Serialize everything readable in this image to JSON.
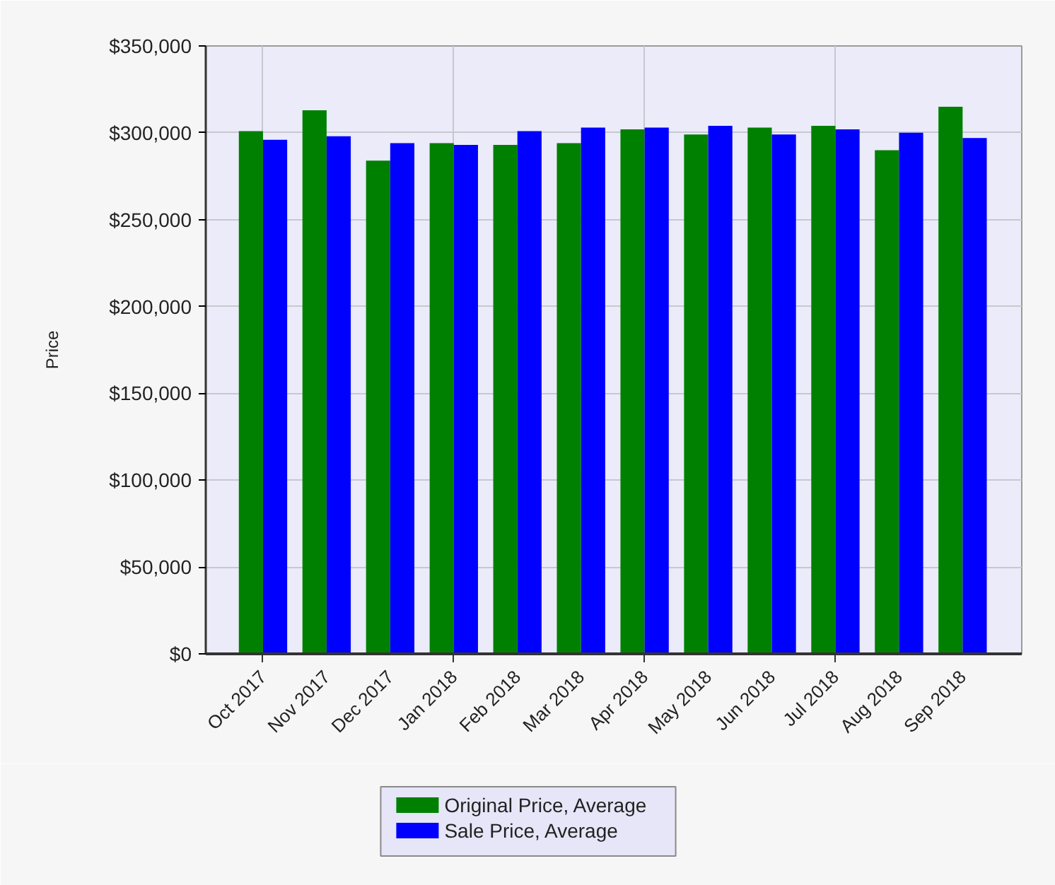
{
  "chart_data": {
    "type": "bar",
    "ylabel": "Price",
    "categories": [
      "Oct 2017",
      "Nov 2017",
      "Dec 2017",
      "Jan 2018",
      "Feb 2018",
      "Mar 2018",
      "Apr 2018",
      "May 2018",
      "Jun 2018",
      "Jul 2018",
      "Aug 2018",
      "Sep 2018"
    ],
    "series": [
      {
        "name": "Original Price, Average",
        "color": "#008000",
        "values": [
          301000,
          313000,
          284000,
          294000,
          293000,
          294000,
          302000,
          299000,
          303000,
          304000,
          290000,
          315000
        ]
      },
      {
        "name": "Sale Price, Average",
        "color": "#0000ff",
        "values": [
          296000,
          298000,
          294000,
          293000,
          301000,
          303000,
          303000,
          304000,
          299000,
          302000,
          300000,
          297000
        ]
      }
    ],
    "ylim": [
      0,
      350000
    ],
    "yticks": [
      {
        "value": 0,
        "label": "$0"
      },
      {
        "value": 50000,
        "label": "$50,000"
      },
      {
        "value": 100000,
        "label": "$100,000"
      },
      {
        "value": 150000,
        "label": "$150,000"
      },
      {
        "value": 200000,
        "label": "$200,000"
      },
      {
        "value": 250000,
        "label": "$250,000"
      },
      {
        "value": 300000,
        "label": "$300,000"
      },
      {
        "value": 350000,
        "label": "$350,000"
      }
    ],
    "grid": true,
    "legend": "bottom"
  }
}
